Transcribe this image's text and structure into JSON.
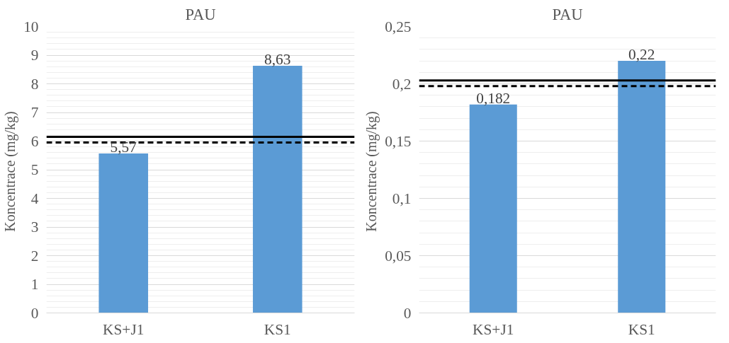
{
  "chart_data": [
    {
      "type": "bar",
      "title": "PAU",
      "ylabel": "Koncentrace  (mg/kg)",
      "categories": [
        "KS+J1",
        "KS1"
      ],
      "values": [
        5.57,
        8.63
      ],
      "color": "#5b9bd5",
      "value_labels": [
        "5,57",
        "8,63"
      ],
      "ylim": [
        0,
        10
      ],
      "yticks": [
        0,
        1,
        2,
        3,
        4,
        5,
        6,
        7,
        8,
        9,
        10
      ],
      "grid": "y",
      "ref_lines": [
        {
          "axis": "y",
          "value": 6.15,
          "label": null,
          "color": "#000000",
          "line_style": "solid"
        },
        {
          "axis": "y",
          "value": 5.95,
          "label": null,
          "color": "#000000",
          "line_style": "dashed"
        }
      ]
    },
    {
      "type": "bar",
      "title": "PAU",
      "ylabel": "Koncentrace  (mg/kg)",
      "categories": [
        "KS+J1",
        "KS1"
      ],
      "values": [
        0.182,
        0.22
      ],
      "color": "#5b9bd5",
      "value_labels": [
        "0,182",
        "0,22"
      ],
      "ylim": [
        0,
        0.25
      ],
      "yticks": [
        0,
        {
          "value": 0.05,
          "label": "0,05"
        },
        {
          "value": 0.1,
          "label": "0,1"
        },
        {
          "value": 0.15,
          "label": "0,15"
        },
        {
          "value": 0.2,
          "label": "0,2"
        },
        {
          "value": 0.25,
          "label": "0,25"
        }
      ],
      "grid": "y",
      "ref_lines": [
        {
          "axis": "y",
          "value": 0.203,
          "label": null,
          "color": "#000000",
          "line_style": "solid"
        },
        {
          "axis": "y",
          "value": 0.198,
          "label": null,
          "color": "#000000",
          "line_style": "dashed"
        }
      ]
    }
  ]
}
